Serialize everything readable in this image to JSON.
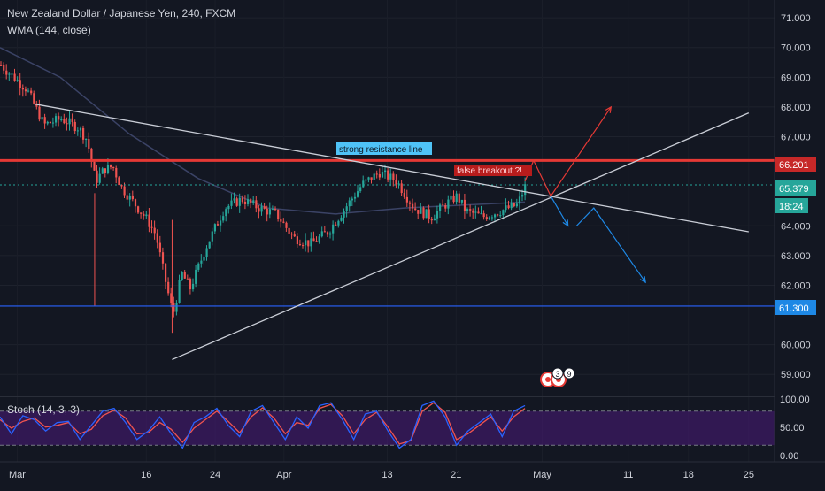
{
  "header": {
    "symbol_title": "New Zealand Dollar / Japanese Yen, 240, FXCM",
    "indicator_label": "WMA (144, close)"
  },
  "colors": {
    "background": "#131722",
    "up_candle": "#26a69a",
    "down_candle": "#ef5350",
    "resistance_line": "#e53935",
    "support_line": "#2962ff",
    "trendline": "#c9cdd6",
    "wma": "#3b4366",
    "stoch_k": "#2962ff",
    "stoch_d": "#ef5350",
    "stoch_band": "#4a1a7a",
    "arrow_red": "#e53935",
    "arrow_blue": "#1e88e5"
  },
  "annotations": {
    "strong_resistance": "strong resistance line",
    "false_breakout": "false breakout ?!"
  },
  "price_tags": {
    "resistance": "66.201",
    "current": "65.379",
    "countdown": "18:24",
    "support": "61.300"
  },
  "event_markers": [
    "3",
    "9"
  ],
  "stoch_panel": {
    "label": "Stoch (14, 3, 3)",
    "ticks": [
      "100.00",
      "50.00",
      "0.00"
    ]
  },
  "chart_data": {
    "type": "candlestick",
    "timeframe": "240",
    "symbol": "NZDJPY",
    "price_ticks": [
      "71.000",
      "70.000",
      "69.000",
      "68.000",
      "67.000",
      "64.000",
      "63.000",
      "62.000",
      "60.000",
      "59.000"
    ],
    "ylim": [
      58.5,
      71.6
    ],
    "x_ticks": [
      "Mar",
      "16",
      "24",
      "Apr",
      "13",
      "21",
      "May",
      "11",
      "18",
      "25"
    ],
    "horizontal_levels": [
      {
        "value": 66.201,
        "kind": "resistance"
      },
      {
        "value": 61.3,
        "kind": "support"
      },
      {
        "value": 65.379,
        "kind": "last_price"
      }
    ],
    "price_path": [
      {
        "date": "2020-02-28",
        "price": 69.4
      },
      {
        "date": "2020-03-02",
        "price": 68.6
      },
      {
        "date": "2020-03-04",
        "price": 67.4
      },
      {
        "date": "2020-03-06",
        "price": 67.6
      },
      {
        "date": "2020-03-08",
        "price": 67.3
      },
      {
        "date": "2020-03-09",
        "price": 66.9
      },
      {
        "date": "2020-03-10",
        "price": 65.5
      },
      {
        "date": "2020-03-11",
        "price": 65.9
      },
      {
        "date": "2020-03-12",
        "price": 66.0
      },
      {
        "date": "2020-03-13",
        "price": 65.3
      },
      {
        "date": "2020-03-16",
        "price": 64.2
      },
      {
        "date": "2020-03-17",
        "price": 63.7
      },
      {
        "date": "2020-03-18",
        "price": 62.3
      },
      {
        "date": "2020-03-19",
        "price": 61.0
      },
      {
        "date": "2020-03-20",
        "price": 62.4
      },
      {
        "date": "2020-03-21",
        "price": 61.9
      },
      {
        "date": "2020-03-23",
        "price": 63.4
      },
      {
        "date": "2020-03-25",
        "price": 64.6
      },
      {
        "date": "2020-03-27",
        "price": 64.9
      },
      {
        "date": "2020-03-29",
        "price": 64.6
      },
      {
        "date": "2020-03-31",
        "price": 64.4
      },
      {
        "date": "2020-04-02",
        "price": 63.6
      },
      {
        "date": "2020-04-04",
        "price": 63.4
      },
      {
        "date": "2020-04-06",
        "price": 63.8
      },
      {
        "date": "2020-04-08",
        "price": 64.6
      },
      {
        "date": "2020-04-10",
        "price": 65.4
      },
      {
        "date": "2020-04-12",
        "price": 65.8
      },
      {
        "date": "2020-04-14",
        "price": 65.5
      },
      {
        "date": "2020-04-16",
        "price": 64.6
      },
      {
        "date": "2020-04-18",
        "price": 64.3
      },
      {
        "date": "2020-04-20",
        "price": 64.8
      },
      {
        "date": "2020-04-21",
        "price": 65.0
      },
      {
        "date": "2020-04-22",
        "price": 64.5
      },
      {
        "date": "2020-04-24",
        "price": 64.3
      },
      {
        "date": "2020-04-26",
        "price": 64.5
      },
      {
        "date": "2020-04-28",
        "price": 64.7
      },
      {
        "date": "2020-04-29",
        "price": 65.38
      }
    ],
    "spike_lows": [
      {
        "date": "2020-03-10",
        "price": 61.3
      },
      {
        "date": "2020-03-19",
        "price": 60.4
      }
    ],
    "trendlines": [
      {
        "name": "descending",
        "from": {
          "date": "2020-03-03",
          "price": 68.1
        },
        "to": {
          "date": "2020-05-25",
          "price": 63.8
        }
      },
      {
        "name": "ascending",
        "from": {
          "date": "2020-03-19",
          "price": 59.5
        },
        "to": {
          "date": "2020-05-25",
          "price": 67.8
        }
      }
    ],
    "wma_path": [
      {
        "date": "2020-02-28",
        "price": 70.0
      },
      {
        "date": "2020-03-06",
        "price": 69.0
      },
      {
        "date": "2020-03-14",
        "price": 67.1
      },
      {
        "date": "2020-03-22",
        "price": 65.6
      },
      {
        "date": "2020-03-30",
        "price": 64.6
      },
      {
        "date": "2020-04-07",
        "price": 64.4
      },
      {
        "date": "2020-04-15",
        "price": 64.6
      },
      {
        "date": "2020-04-22",
        "price": 64.7
      },
      {
        "date": "2020-04-29",
        "price": 64.8
      }
    ],
    "projection_arrows": [
      {
        "color": "red",
        "points": [
          {
            "date": "2020-04-29",
            "price": 65.5
          },
          {
            "date": "2020-04-30",
            "price": 66.2
          },
          {
            "date": "2020-05-02",
            "price": 65.0
          },
          {
            "date": "2020-05-09",
            "price": 68.0
          }
        ]
      },
      {
        "color": "blue",
        "points": [
          {
            "date": "2020-05-02",
            "price": 65.0
          },
          {
            "date": "2020-05-04",
            "price": 64.0
          }
        ]
      },
      {
        "color": "blue",
        "points": [
          {
            "date": "2020-05-05",
            "price": 64.0
          },
          {
            "date": "2020-05-07",
            "price": 64.6
          },
          {
            "date": "2020-05-13",
            "price": 62.1
          }
        ]
      }
    ],
    "stochastic": {
      "k": [
        70,
        40,
        72,
        65,
        45,
        60,
        62,
        30,
        55,
        80,
        85,
        60,
        30,
        45,
        70,
        40,
        15,
        60,
        70,
        85,
        55,
        35,
        80,
        90,
        60,
        30,
        70,
        50,
        90,
        95,
        65,
        30,
        75,
        80,
        45,
        15,
        30,
        90,
        98,
        70,
        20,
        45,
        60,
        75,
        35,
        80,
        90
      ],
      "d": [
        65,
        50,
        62,
        68,
        52,
        55,
        60,
        40,
        48,
        72,
        82,
        68,
        40,
        42,
        60,
        48,
        25,
        50,
        65,
        80,
        62,
        42,
        70,
        86,
        68,
        40,
        60,
        55,
        85,
        92,
        72,
        40,
        65,
        78,
        52,
        22,
        28,
        80,
        95,
        78,
        30,
        40,
        55,
        70,
        45,
        70,
        85
      ],
      "bands": [
        80,
        20
      ]
    }
  }
}
